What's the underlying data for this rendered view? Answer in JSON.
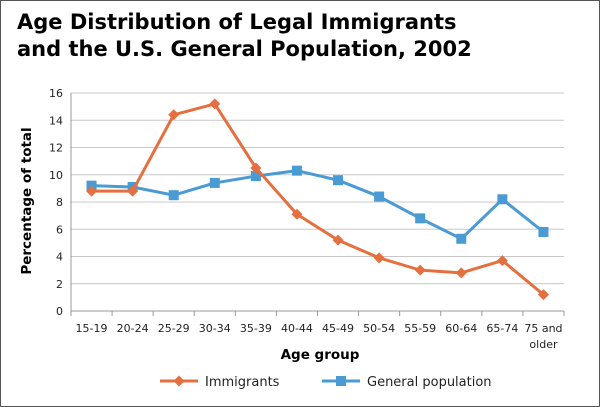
{
  "chart_data": {
    "type": "line",
    "title_lines": [
      "Age Distribution of Legal Immigrants",
      "and the U.S. General Population, 2002"
    ],
    "xlabel": "Age group",
    "ylabel": "Percentage of total",
    "categories": [
      "15-19",
      "20-24",
      "25-29",
      "30-34",
      "35-39",
      "40-44",
      "45-49",
      "50-54",
      "55-59",
      "60-64",
      "65-74",
      "75 and older"
    ],
    "ylim": [
      0,
      16
    ],
    "yticks": [
      0,
      2,
      4,
      6,
      8,
      10,
      12,
      14,
      16
    ],
    "grid": true,
    "legend_position": "bottom",
    "series": [
      {
        "name": "Immigrants",
        "color": "#e56f3f",
        "marker": "diamond",
        "values": [
          8.8,
          8.8,
          14.4,
          15.2,
          10.5,
          7.1,
          5.2,
          3.9,
          3.0,
          2.8,
          3.7,
          1.2
        ]
      },
      {
        "name": "General population",
        "color": "#4a9ad4",
        "marker": "square",
        "values": [
          9.2,
          9.1,
          8.5,
          9.4,
          9.9,
          10.3,
          9.6,
          8.4,
          6.8,
          5.3,
          8.2,
          5.8
        ]
      }
    ]
  }
}
